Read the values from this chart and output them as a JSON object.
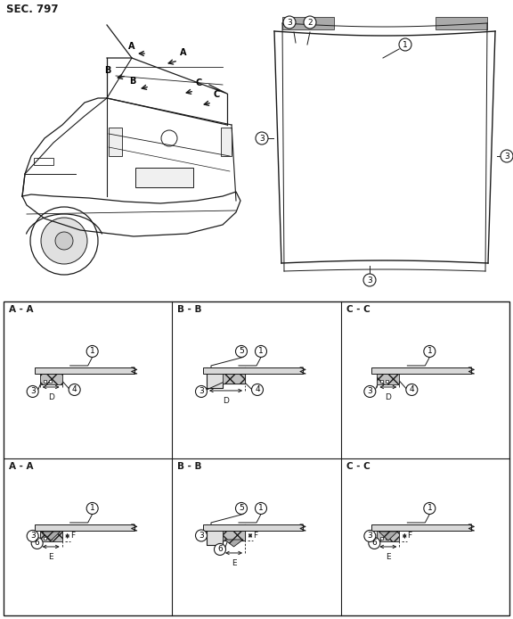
{
  "title": "SEC. 797",
  "bg_color": "#ffffff",
  "line_color": "#1a1a1a",
  "section_labels_top": [
    "A - A",
    "B - B",
    "C - C"
  ],
  "section_labels_bottom": [
    "A - A",
    "B - B",
    "C - C"
  ]
}
